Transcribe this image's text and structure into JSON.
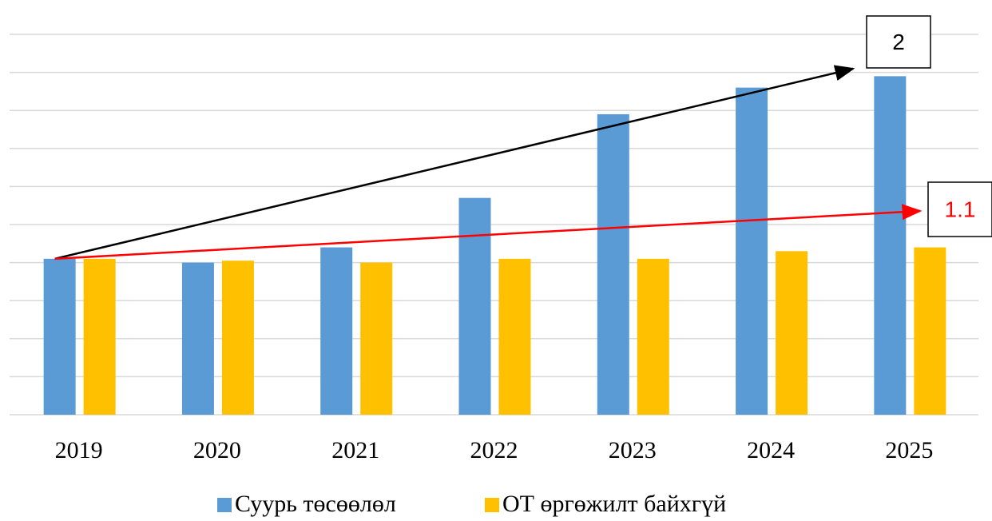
{
  "chart_data": {
    "type": "bar",
    "categories": [
      "2019",
      "2020",
      "2021",
      "2022",
      "2023",
      "2024",
      "2025"
    ],
    "series": [
      {
        "name": "Суурь төсөөлөл",
        "color": "#5b9bd5",
        "values": [
          4.1,
          4.0,
          4.4,
          5.7,
          7.9,
          8.6,
          8.9
        ]
      },
      {
        "name": "ОТ өргөжилт байхгүй",
        "color": "#ffc000",
        "values": [
          4.1,
          4.05,
          4.0,
          4.1,
          4.1,
          4.3,
          4.4
        ]
      }
    ],
    "ylim": [
      0,
      10
    ],
    "yticks": [
      0,
      1,
      2,
      3,
      4,
      5,
      6,
      7,
      8,
      9,
      10
    ],
    "grid": true,
    "annotations": [
      {
        "text": "2",
        "color": "#000000"
      },
      {
        "text": "1.1",
        "color": "#ff0000"
      }
    ]
  }
}
